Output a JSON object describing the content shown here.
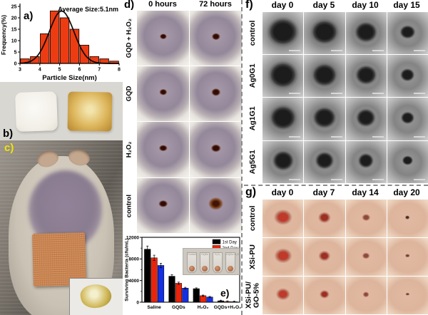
{
  "panels": {
    "a": {
      "label": "a)"
    },
    "b": {
      "label": "b)"
    },
    "c": {
      "label": "c)"
    },
    "d": {
      "label": "d)",
      "col_headers": [
        "0 hours",
        "72 hours"
      ],
      "row_labels": [
        "GQD + H₂O₂",
        "GQD",
        "H₂O₂",
        "control"
      ]
    },
    "e": {
      "label": "e)",
      "inset_labels": [
        "Control",
        "GQDs",
        "H₂O₂",
        "GQDs+H₂O₂"
      ]
    },
    "f": {
      "label": "f)",
      "col_headers": [
        "day 0",
        "day 5",
        "day 10",
        "day 15"
      ],
      "row_labels": [
        "control",
        "Ag0G1",
        "Ag1G1",
        "Ag5G1"
      ]
    },
    "g": {
      "label": "g)",
      "col_headers": [
        "day 0",
        "day 7",
        "day 14",
        "day 20"
      ],
      "row_labels": [
        "control",
        "XSi-PU",
        "XSi-PU/\nGO-5%"
      ]
    }
  },
  "chart_data": [
    {
      "id": "particle-size-histogram",
      "type": "bar",
      "title": "Average Size:5.1nm",
      "xlabel": "Particle Size(nm)",
      "ylabel": "Frequency(%)",
      "xlim": [
        3,
        8
      ],
      "ylim": [
        0,
        25
      ],
      "x_ticks": [
        3,
        4,
        5,
        6,
        7,
        8
      ],
      "y_ticks": [
        0,
        5,
        10,
        15,
        20,
        25
      ],
      "bin_edges": [
        3,
        3.5,
        4,
        4.5,
        5,
        5.5,
        6,
        6.5,
        7,
        7.5,
        8
      ],
      "values": [
        2,
        3,
        13,
        23,
        20,
        15,
        8,
        3,
        2,
        1
      ],
      "bar_color": "#ee3c12",
      "fit": {
        "type": "gaussian",
        "mean": 5.1,
        "sigma": 0.62,
        "amplitude": 23
      },
      "grid": false
    },
    {
      "id": "surviving-bacteria-bars",
      "type": "bar",
      "ylabel": "Surviving Bacteria (cfu/mL)",
      "ylim": [
        0,
        12000
      ],
      "y_ticks": [
        0,
        4000,
        8000,
        12000
      ],
      "categories": [
        "Saline",
        "GQDs",
        "H₂O₂",
        "GQDs+H₂O₂"
      ],
      "series": [
        {
          "name": "1st Day",
          "color": "#000000",
          "values": [
            9800,
            4800,
            2500,
            250
          ]
        },
        {
          "name": "2nd Day",
          "color": "#e8250c",
          "values": [
            8200,
            3500,
            1200,
            120
          ]
        },
        {
          "name": "3rd Day",
          "color": "#1430e0",
          "values": [
            6800,
            2600,
            950,
            80
          ]
        }
      ],
      "error_bars": true,
      "legend_position": "upper right",
      "grid": false
    }
  ]
}
